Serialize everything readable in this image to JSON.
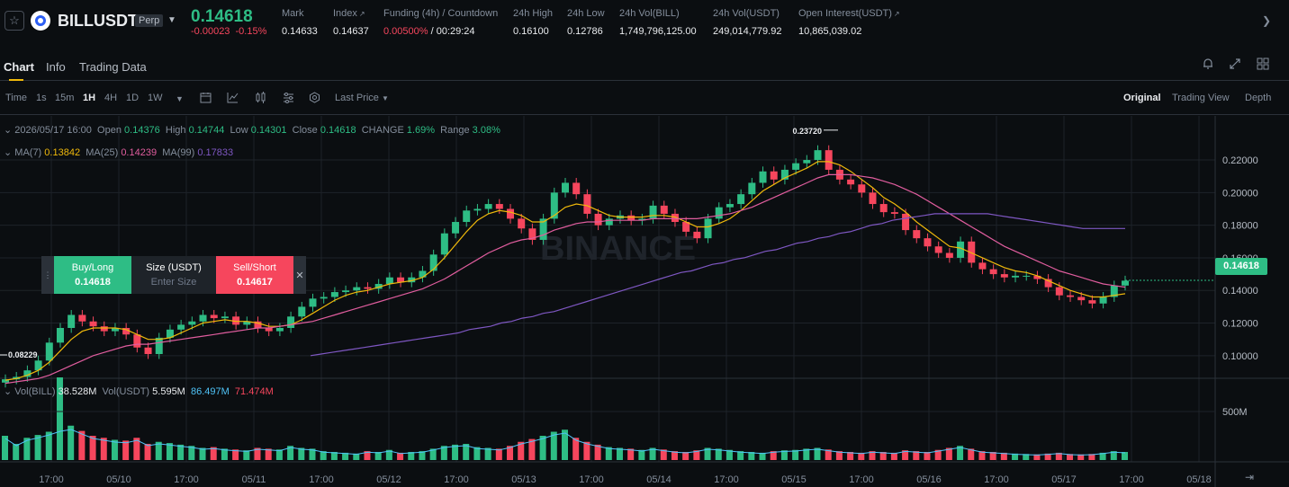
{
  "header": {
    "symbol": "BILLUSDT",
    "badge": "Perp",
    "last_price": "0.14618",
    "change_abs": "-0.00023",
    "change_pct": "-0.15%",
    "stats": [
      {
        "label": "Mark",
        "value": "0.14633"
      },
      {
        "label": "Index",
        "value": "0.14637"
      },
      {
        "label": "Funding (4h) / Countdown",
        "value_rate": "0.00500%",
        "value_countdown": "/ 00:29:24"
      },
      {
        "label": "24h High",
        "value": "0.16100"
      },
      {
        "label": "24h Low",
        "value": "0.12786"
      },
      {
        "label": "24h Vol(BILL)",
        "value": "1,749,796,125.00"
      },
      {
        "label": "24h Vol(USDT)",
        "value": "249,014,779.92"
      },
      {
        "label": "Open Interest(USDT)",
        "value": "10,865,039.02"
      }
    ]
  },
  "tabs": [
    "Chart",
    "Info",
    "Trading Data"
  ],
  "toolbar": {
    "intervals": [
      "Time",
      "1s",
      "15m",
      "1H",
      "4H",
      "1D",
      "1W"
    ],
    "active_interval": "1H",
    "price_type": "Last Price",
    "views": [
      "Original",
      "Trading View",
      "Depth"
    ],
    "active_view": "Original"
  },
  "ohlc": {
    "date": "2026/05/17 16:00",
    "open_label": "Open",
    "open": "0.14376",
    "high_label": "High",
    "high": "0.14744",
    "low_label": "Low",
    "low": "0.14301",
    "close_label": "Close",
    "close": "0.14618",
    "change_label": "CHANGE",
    "change": "1.69%",
    "range_label": "Range",
    "range": "3.08%"
  },
  "ma": {
    "ma7_label": "MA(7)",
    "ma7": "0.13842",
    "ma25_label": "MA(25)",
    "ma25": "0.14239",
    "ma99_label": "MA(99)",
    "ma99": "0.17833"
  },
  "volume": {
    "label1": "Vol(BILL)",
    "value1": "38.528M",
    "label2": "Vol(USDT)",
    "value2": "5.595M",
    "value3": "86.497M",
    "value4": "71.474M"
  },
  "order": {
    "buy_label": "Buy/Long",
    "buy_price": "0.14618",
    "size_label": "Size (USDT)",
    "size_placeholder": "Enter Size",
    "sell_label": "Sell/Short",
    "sell_price": "0.14617"
  },
  "price_tag": "0.14618",
  "watermark": "BINANCE",
  "chart_data": {
    "type": "line",
    "y_ticks": [
      "0.22000",
      "0.20000",
      "0.18000",
      "0.16000",
      "0.14000",
      "0.12000",
      "0.10000"
    ],
    "ylim": [
      0.09,
      0.236
    ],
    "x_ticks": [
      "17:00",
      "05/10",
      "17:00",
      "05/11",
      "17:00",
      "05/12",
      "17:00",
      "05/13",
      "17:00",
      "05/14",
      "17:00",
      "05/15",
      "17:00",
      "05/16",
      "17:00",
      "05/17",
      "17:00",
      "05/18"
    ],
    "volume_tick": "500M",
    "marker_high": "0.23720",
    "marker_low": "0.08229",
    "close_series": [
      0.0855,
      0.087,
      0.091,
      0.097,
      0.108,
      0.117,
      0.125,
      0.121,
      0.118,
      0.115,
      0.117,
      0.113,
      0.105,
      0.101,
      0.111,
      0.116,
      0.119,
      0.121,
      0.125,
      0.123,
      0.124,
      0.119,
      0.121,
      0.117,
      0.115,
      0.117,
      0.124,
      0.13,
      0.135,
      0.136,
      0.139,
      0.14,
      0.142,
      0.141,
      0.144,
      0.148,
      0.145,
      0.148,
      0.152,
      0.162,
      0.175,
      0.182,
      0.189,
      0.19,
      0.193,
      0.19,
      0.184,
      0.178,
      0.171,
      0.184,
      0.2,
      0.206,
      0.199,
      0.187,
      0.18,
      0.184,
      0.186,
      0.183,
      0.184,
      0.192,
      0.187,
      0.182,
      0.176,
      0.172,
      0.184,
      0.191,
      0.193,
      0.199,
      0.206,
      0.213,
      0.208,
      0.214,
      0.218,
      0.22,
      0.226,
      0.214,
      0.208,
      0.205,
      0.2,
      0.193,
      0.188,
      0.187,
      0.177,
      0.172,
      0.167,
      0.163,
      0.16,
      0.17,
      0.157,
      0.153,
      0.15,
      0.148,
      0.149,
      0.149,
      0.147,
      0.142,
      0.137,
      0.136,
      0.134,
      0.132,
      0.136,
      0.143,
      0.146
    ],
    "ma7": [
      0.085,
      0.086,
      0.088,
      0.091,
      0.096,
      0.103,
      0.11,
      0.115,
      0.117,
      0.117,
      0.117,
      0.116,
      0.113,
      0.11,
      0.11,
      0.111,
      0.114,
      0.117,
      0.12,
      0.121,
      0.122,
      0.121,
      0.121,
      0.12,
      0.118,
      0.118,
      0.119,
      0.122,
      0.126,
      0.13,
      0.134,
      0.137,
      0.139,
      0.14,
      0.142,
      0.144,
      0.145,
      0.146,
      0.148,
      0.153,
      0.16,
      0.168,
      0.176,
      0.183,
      0.187,
      0.189,
      0.188,
      0.186,
      0.182,
      0.182,
      0.186,
      0.191,
      0.193,
      0.192,
      0.189,
      0.186,
      0.185,
      0.185,
      0.185,
      0.186,
      0.186,
      0.185,
      0.182,
      0.179,
      0.179,
      0.181,
      0.184,
      0.189,
      0.195,
      0.201,
      0.205,
      0.209,
      0.212,
      0.215,
      0.219,
      0.219,
      0.217,
      0.213,
      0.208,
      0.203,
      0.197,
      0.193,
      0.188,
      0.182,
      0.177,
      0.172,
      0.167,
      0.166,
      0.163,
      0.16,
      0.157,
      0.154,
      0.152,
      0.151,
      0.149,
      0.146,
      0.143,
      0.14,
      0.138,
      0.136,
      0.136,
      0.137,
      0.138
    ],
    "ma25": [
      0.083,
      0.084,
      0.085,
      0.086,
      0.088,
      0.091,
      0.094,
      0.097,
      0.1,
      0.102,
      0.104,
      0.106,
      0.107,
      0.107,
      0.108,
      0.109,
      0.11,
      0.111,
      0.112,
      0.113,
      0.114,
      0.115,
      0.116,
      0.117,
      0.117,
      0.118,
      0.119,
      0.12,
      0.121,
      0.123,
      0.125,
      0.127,
      0.129,
      0.131,
      0.133,
      0.135,
      0.137,
      0.139,
      0.141,
      0.144,
      0.147,
      0.151,
      0.155,
      0.159,
      0.163,
      0.166,
      0.169,
      0.171,
      0.172,
      0.174,
      0.177,
      0.179,
      0.181,
      0.182,
      0.182,
      0.183,
      0.183,
      0.183,
      0.183,
      0.184,
      0.184,
      0.184,
      0.184,
      0.184,
      0.185,
      0.186,
      0.187,
      0.189,
      0.191,
      0.194,
      0.197,
      0.2,
      0.203,
      0.206,
      0.209,
      0.211,
      0.211,
      0.211,
      0.21,
      0.209,
      0.207,
      0.205,
      0.202,
      0.199,
      0.195,
      0.191,
      0.187,
      0.183,
      0.179,
      0.175,
      0.171,
      0.167,
      0.164,
      0.161,
      0.158,
      0.155,
      0.152,
      0.15,
      0.148,
      0.146,
      0.144,
      0.143,
      0.142
    ],
    "ma99_start_index": 25,
    "ma99": [
      0.1,
      0.101,
      0.102,
      0.103,
      0.104,
      0.105,
      0.106,
      0.107,
      0.108,
      0.109,
      0.11,
      0.111,
      0.112,
      0.113,
      0.114,
      0.116,
      0.117,
      0.118,
      0.12,
      0.121,
      0.123,
      0.124,
      0.126,
      0.127,
      0.129,
      0.131,
      0.133,
      0.135,
      0.137,
      0.139,
      0.141,
      0.143,
      0.145,
      0.147,
      0.149,
      0.151,
      0.152,
      0.154,
      0.156,
      0.157,
      0.159,
      0.16,
      0.162,
      0.164,
      0.165,
      0.167,
      0.169,
      0.17,
      0.172,
      0.173,
      0.175,
      0.176,
      0.178,
      0.18,
      0.181,
      0.183,
      0.184,
      0.185,
      0.186,
      0.187,
      0.187,
      0.187,
      0.187,
      0.187,
      0.187,
      0.186,
      0.185,
      0.184,
      0.183,
      0.182,
      0.181,
      0.18,
      0.179,
      0.178,
      0.178,
      0.178,
      0.178,
      0.178
    ],
    "volume": [
      60,
      40,
      55,
      62,
      70,
      80,
      85,
      72,
      60,
      55,
      50,
      48,
      55,
      40,
      45,
      42,
      38,
      35,
      30,
      32,
      28,
      26,
      24,
      30,
      28,
      26,
      35,
      30,
      28,
      22,
      20,
      18,
      16,
      22,
      20,
      25,
      18,
      20,
      22,
      28,
      35,
      38,
      40,
      32,
      30,
      28,
      35,
      45,
      52,
      60,
      70,
      75,
      55,
      45,
      38,
      32,
      30,
      28,
      25,
      30,
      26,
      22,
      20,
      24,
      30,
      28,
      25,
      22,
      20,
      18,
      22,
      24,
      25,
      28,
      30,
      26,
      22,
      20,
      18,
      22,
      20,
      18,
      24,
      22,
      20,
      25,
      30,
      35,
      28,
      22,
      20,
      18,
      16,
      15,
      14,
      16,
      18,
      15,
      14,
      15,
      18,
      22,
      20
    ],
    "volume_spike_index": 5
  }
}
